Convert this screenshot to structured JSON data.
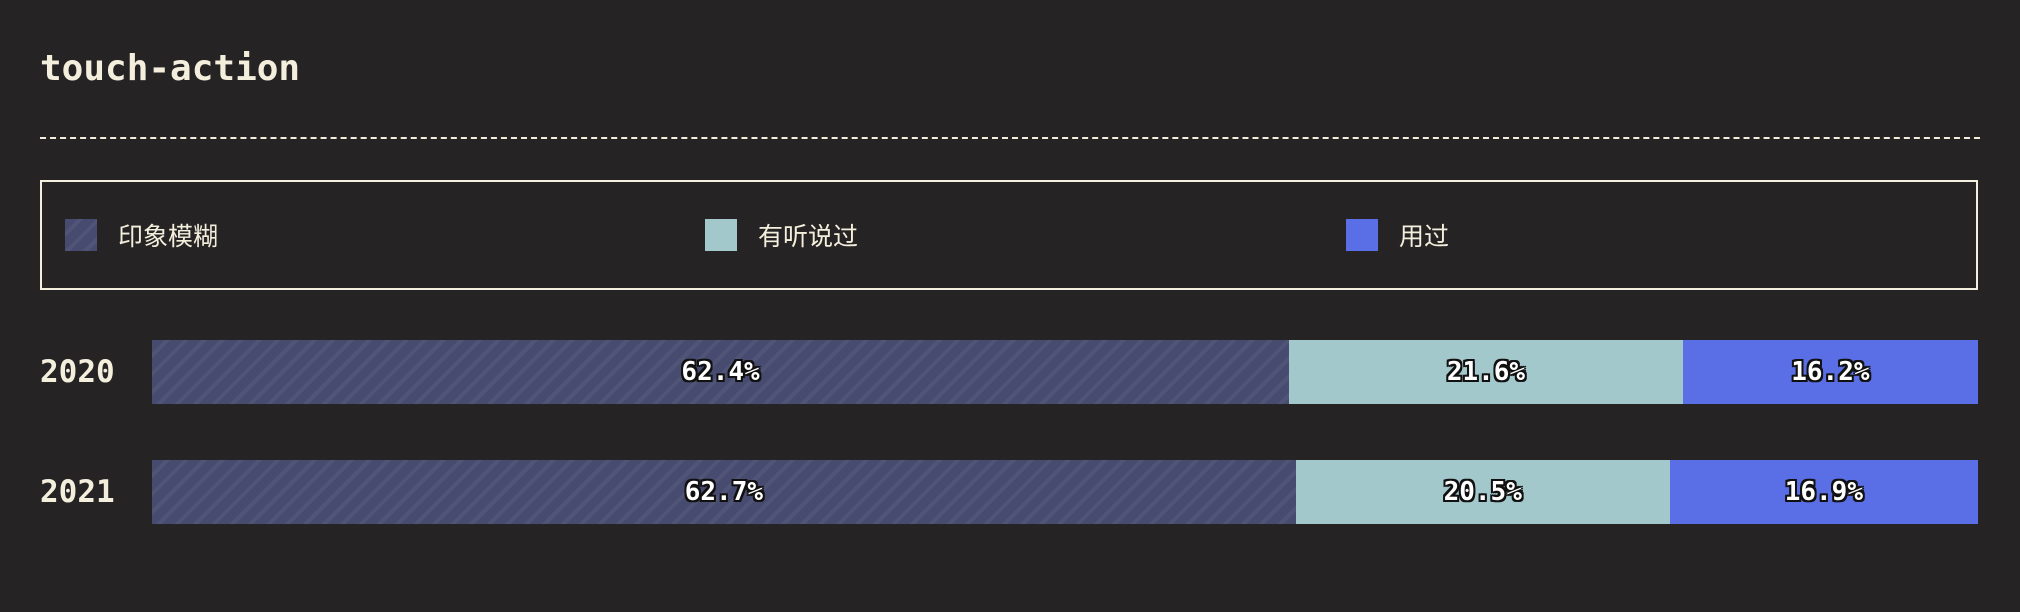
{
  "chart_data": {
    "type": "bar",
    "stacked": true,
    "orientation": "horizontal",
    "title": "touch-action",
    "categories": [
      "2020",
      "2021"
    ],
    "series": [
      {
        "name": "印象模糊",
        "values": [
          62.4,
          62.7
        ],
        "labels": [
          "62.4%",
          "62.7%"
        ],
        "color": "#474b70",
        "pattern": "hatched"
      },
      {
        "name": "有听说过",
        "values": [
          21.6,
          20.5
        ],
        "labels": [
          "21.6%",
          "20.5%"
        ],
        "color": "#a3c8cc"
      },
      {
        "name": "用过",
        "values": [
          16.2,
          16.9
        ],
        "labels": [
          "16.2%",
          "16.9%"
        ],
        "color": "#5a6ee6"
      }
    ],
    "unit": "%",
    "legend": "top",
    "grid": false
  }
}
